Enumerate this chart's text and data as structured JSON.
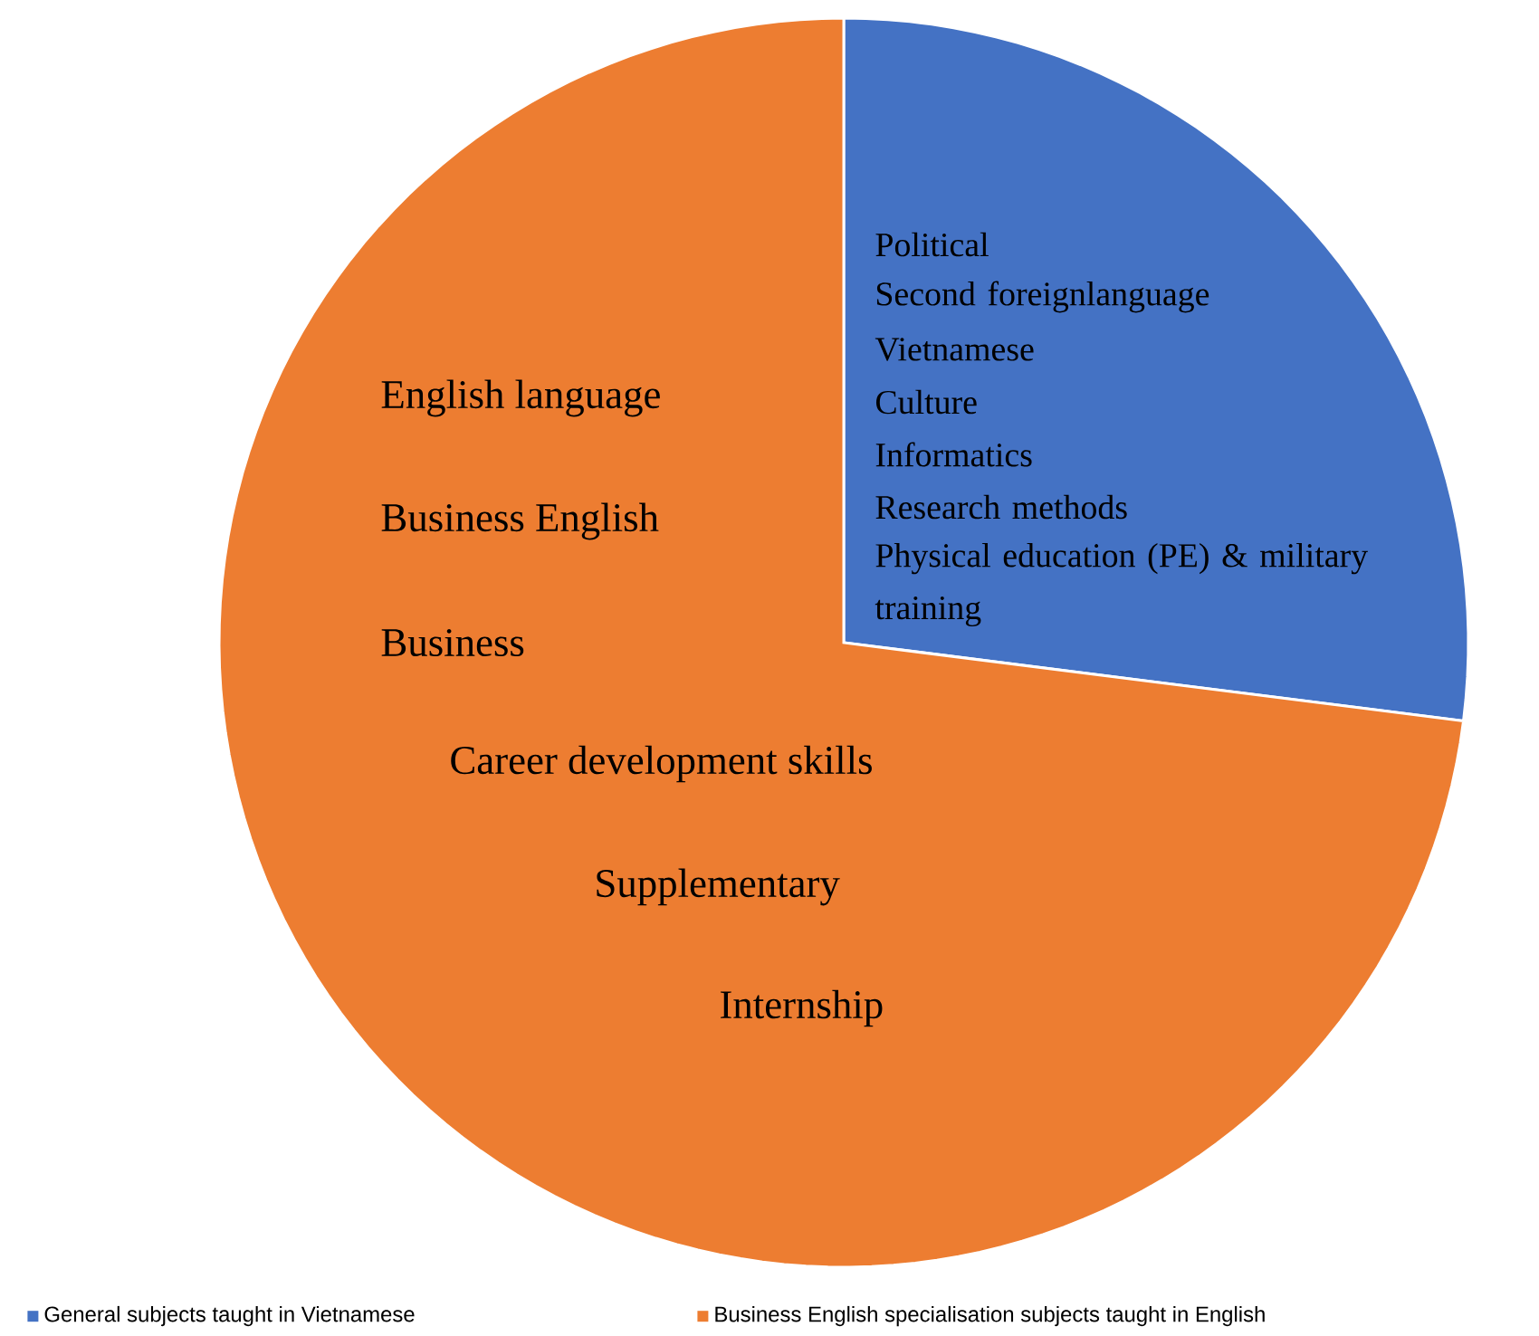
{
  "chart_data": {
    "type": "pie",
    "categories": [
      "General subjects taught in Vietnamese",
      "Business English specialisation subjects taught in English"
    ],
    "values": [
      27,
      73
    ],
    "colors": [
      "#4472c4",
      "#ed7d31"
    ],
    "legend": "bottom",
    "annotations": [
      "Political",
      "Second foreignlanguage",
      "Vietnamese",
      "Culture",
      "Informatics",
      "Research methods",
      "Physical education (PE) & military training",
      "English language",
      "Business English",
      "Business",
      "Career development skills",
      "Supplementary",
      "Internship"
    ]
  }
}
